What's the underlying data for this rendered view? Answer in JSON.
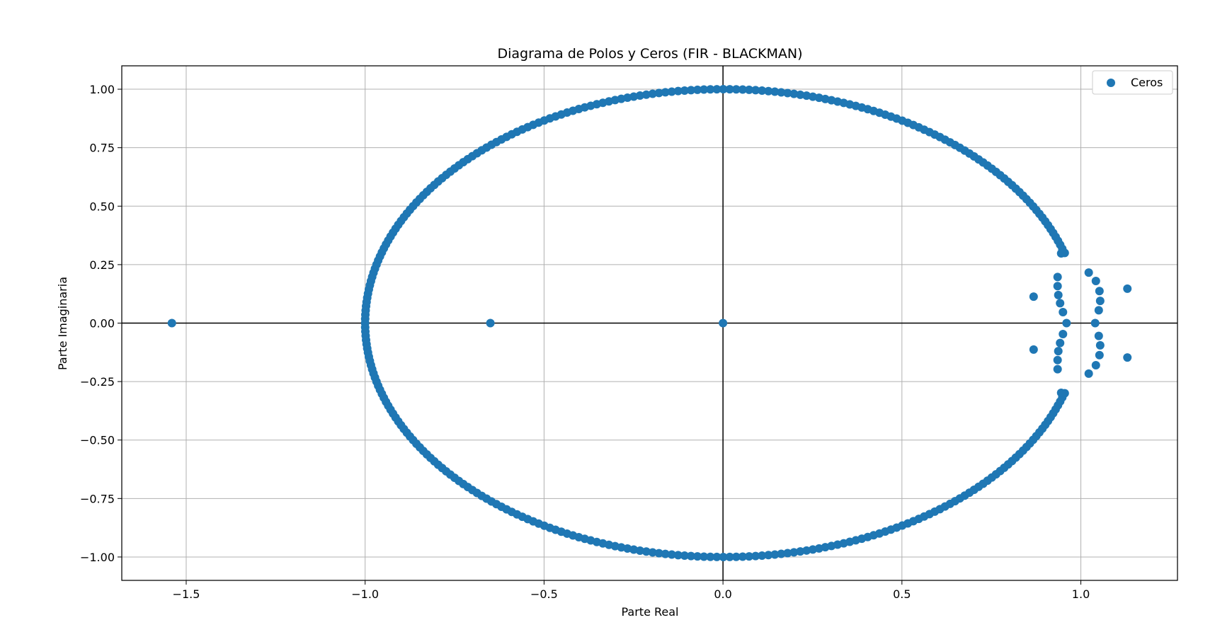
{
  "chart_data": {
    "type": "scatter",
    "title": "Diagrama de Polos y Ceros (FIR - BLACKMAN)",
    "xlabel": "Parte Real",
    "ylabel": "Parte Imaginaria",
    "xlim": [
      -1.68,
      1.27
    ],
    "ylim": [
      -1.1,
      1.1
    ],
    "x_ticks": [
      -1.5,
      -1.0,
      -0.5,
      0.0,
      0.5,
      1.0
    ],
    "x_tick_labels": [
      "−1.5",
      "−1.0",
      "−0.5",
      "0.0",
      "0.5",
      "1.0"
    ],
    "y_ticks": [
      1.0,
      0.75,
      0.5,
      0.25,
      0.0,
      -0.25,
      -0.5,
      -0.75,
      -1.0
    ],
    "y_tick_labels": [
      "1.00",
      "0.75",
      "0.50",
      "0.25",
      "0.00",
      "−0.25",
      "−0.50",
      "−0.75",
      "−1.00"
    ],
    "grid": true,
    "axis_lines_at_zero": true,
    "legend_position": "upper-right",
    "series": [
      {
        "name": "Ceros",
        "color": "#1f77b4",
        "unit_circle_arc": {
          "start_deg": 17.5,
          "end_deg": 342.5,
          "count": 315
        },
        "points": [
          [
            -1.54,
            0.0
          ],
          [
            -0.65,
            0.0
          ],
          [
            0.0,
            0.0
          ],
          [
            0.955,
            0.3
          ],
          [
            0.945,
            0.298
          ],
          [
            0.955,
            -0.3
          ],
          [
            0.945,
            -0.298
          ],
          [
            0.935,
            0.197
          ],
          [
            0.935,
            0.158
          ],
          [
            0.937,
            0.12
          ],
          [
            0.942,
            0.085
          ],
          [
            0.95,
            0.047
          ],
          [
            0.96,
            0.0
          ],
          [
            0.95,
            -0.047
          ],
          [
            0.942,
            -0.085
          ],
          [
            0.937,
            -0.12
          ],
          [
            0.935,
            -0.158
          ],
          [
            0.935,
            -0.197
          ],
          [
            0.868,
            0.113
          ],
          [
            0.868,
            -0.113
          ],
          [
            1.022,
            0.216
          ],
          [
            1.042,
            0.18
          ],
          [
            1.052,
            0.137
          ],
          [
            1.054,
            0.095
          ],
          [
            1.05,
            0.055
          ],
          [
            1.04,
            0.0
          ],
          [
            1.05,
            -0.055
          ],
          [
            1.054,
            -0.095
          ],
          [
            1.052,
            -0.137
          ],
          [
            1.042,
            -0.18
          ],
          [
            1.022,
            -0.216
          ],
          [
            1.13,
            0.147
          ],
          [
            1.13,
            -0.147
          ]
        ]
      }
    ]
  }
}
